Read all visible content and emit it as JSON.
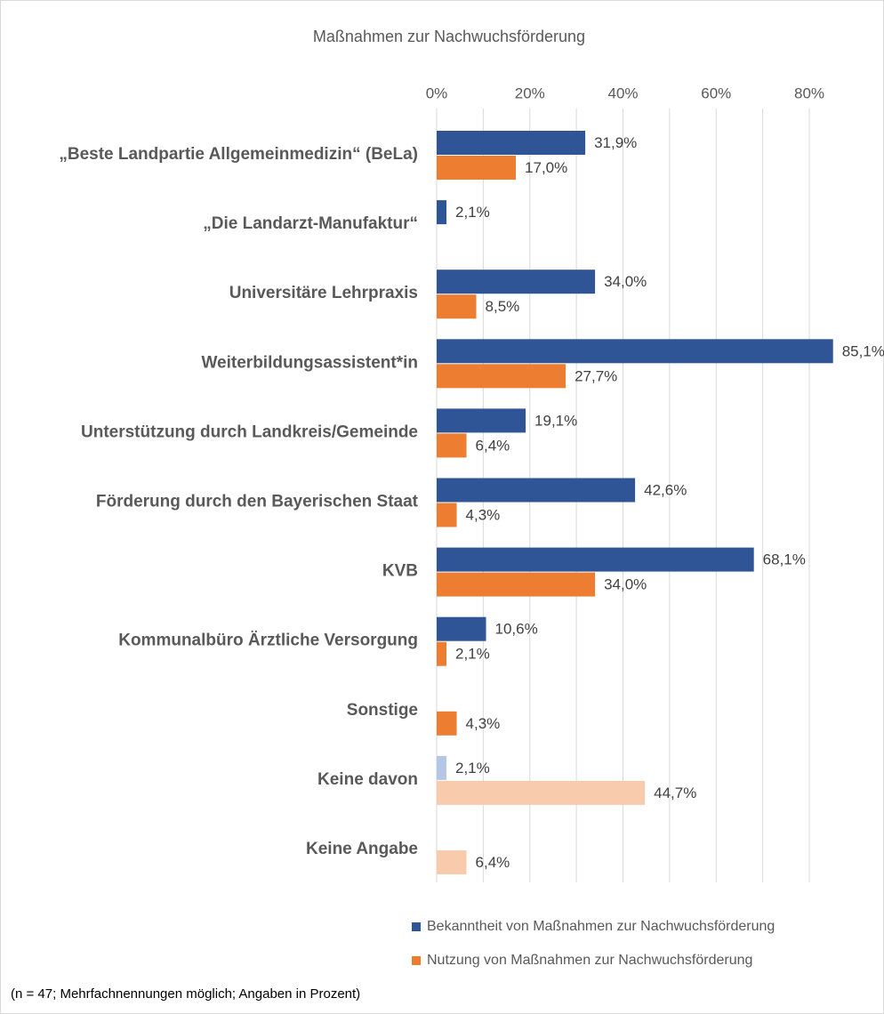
{
  "chart_data": {
    "type": "hbar",
    "title": "Maßnahmen zur Nachwuchsförderung",
    "categories": [
      "„Beste Landpartie Allgemeinmedizin“ (BeLa)",
      "„Die Landarzt-Manufaktur“",
      "Universitäre Lehrpraxis",
      "Weiterbildungsassistent*in",
      "Unterstützung durch Landkreis/Gemeinde",
      "Förderung durch den Bayerischen Staat",
      "KVB",
      "Kommunalbüro Ärztliche Versorgung",
      "Sonstige",
      "Keine davon",
      "Keine Angabe"
    ],
    "series": [
      {
        "name": "Bekanntheit von Maßnahmen zur Nachwuchsförderung",
        "color": "#2f5597",
        "colors": [
          "#2f5597",
          "#2f5597",
          "#2f5597",
          "#2f5597",
          "#2f5597",
          "#2f5597",
          "#2f5597",
          "#2f5597",
          "#2f5597",
          "#b4c7e7",
          "#b4c7e7"
        ],
        "values": [
          31.9,
          2.1,
          34.0,
          85.1,
          19.1,
          42.6,
          68.1,
          10.6,
          null,
          2.1,
          null
        ],
        "value_labels": [
          "31,9%",
          "2,1%",
          "34,0%",
          "85,1%",
          "19,1%",
          "42,6%",
          "68,1%",
          "10,6%",
          null,
          "2,1%",
          null
        ]
      },
      {
        "name": "Nutzung von Maßnahmen zur Nachwuchsförderung",
        "color": "#ed7d31",
        "colors": [
          "#ed7d31",
          "#ed7d31",
          "#ed7d31",
          "#ed7d31",
          "#ed7d31",
          "#ed7d31",
          "#ed7d31",
          "#ed7d31",
          "#ed7d31",
          "#f8cbad",
          "#f8cbad"
        ],
        "values": [
          17.0,
          null,
          8.5,
          27.7,
          6.4,
          4.3,
          34.0,
          2.1,
          4.3,
          44.7,
          6.4
        ],
        "value_labels": [
          "17,0%",
          null,
          "8,5%",
          "27,7%",
          "6,4%",
          "4,3%",
          "34,0%",
          "2,1%",
          "4,3%",
          "44,7%",
          "6,4%"
        ]
      }
    ],
    "xlim": [
      0,
      80
    ],
    "xticks": [
      {
        "value": 0,
        "label": "0%"
      },
      {
        "value": 20,
        "label": "20%"
      },
      {
        "value": 40,
        "label": "40%"
      },
      {
        "value": 60,
        "label": "60%"
      },
      {
        "value": 80,
        "label": "80%"
      }
    ],
    "xminorgrid": [
      10,
      30,
      50,
      70
    ],
    "grid": true,
    "legend": "bottom",
    "footnote": "(n = 47; Mehrfachnennungen möglich; Angaben in Prozent)"
  }
}
